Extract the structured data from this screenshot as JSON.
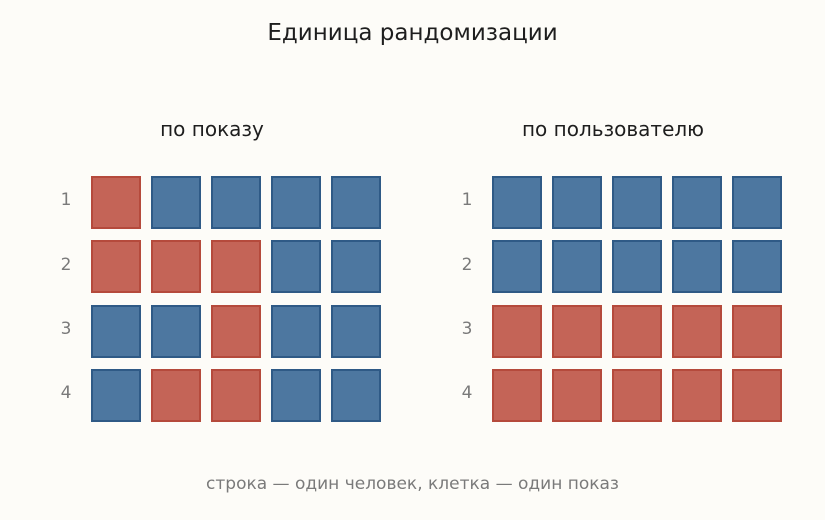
{
  "title": "Единица рандомизации",
  "caption": "строка — один человек, клетка — один показ",
  "colors": {
    "blue": "#4d77a0",
    "blue_border": "#2f5a86",
    "red": "#c46457",
    "red_border": "#b54a3c",
    "background": "#fdfcf8"
  },
  "panels": [
    {
      "title": "по показу",
      "rows": [
        {
          "label": "1",
          "cells": [
            "red",
            "blue",
            "blue",
            "blue",
            "blue"
          ]
        },
        {
          "label": "2",
          "cells": [
            "red",
            "red",
            "red",
            "blue",
            "blue"
          ]
        },
        {
          "label": "3",
          "cells": [
            "blue",
            "blue",
            "red",
            "blue",
            "blue"
          ]
        },
        {
          "label": "4",
          "cells": [
            "blue",
            "red",
            "red",
            "blue",
            "blue"
          ]
        }
      ]
    },
    {
      "title": "по пользователю",
      "rows": [
        {
          "label": "1",
          "cells": [
            "blue",
            "blue",
            "blue",
            "blue",
            "blue"
          ]
        },
        {
          "label": "2",
          "cells": [
            "blue",
            "blue",
            "blue",
            "blue",
            "blue"
          ]
        },
        {
          "label": "3",
          "cells": [
            "red",
            "red",
            "red",
            "red",
            "red"
          ]
        },
        {
          "label": "4",
          "cells": [
            "red",
            "red",
            "red",
            "red",
            "red"
          ]
        }
      ]
    }
  ]
}
